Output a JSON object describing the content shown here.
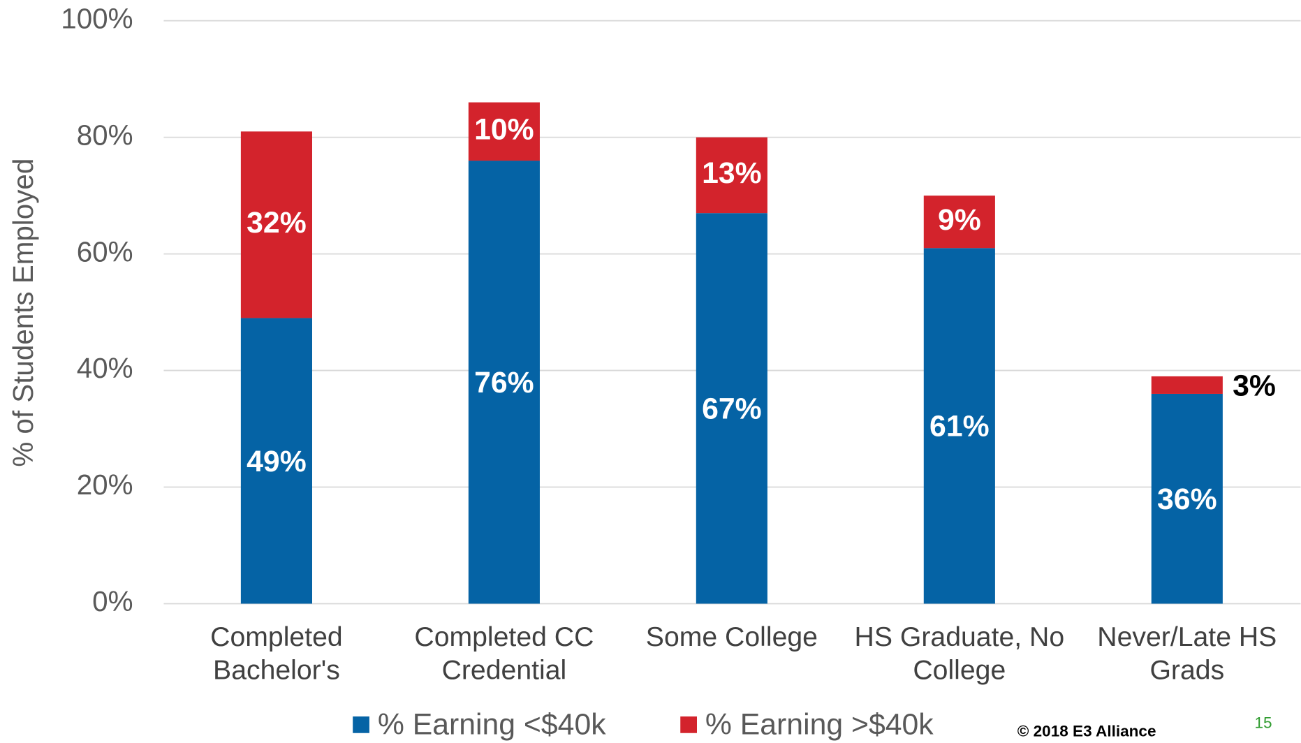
{
  "chart_data": {
    "type": "stacked_bar",
    "y_label": "% of Students Employed",
    "categories": [
      "Completed Bachelor's",
      "Completed CC Credential",
      "Some College",
      "HS Graduate, No College",
      "Never/Late HS Grads"
    ],
    "series": [
      {
        "name": "% Earning <$40k",
        "color": "#0563a5",
        "values": [
          49,
          76,
          67,
          61,
          36
        ],
        "value_labels": [
          "49%",
          "76%",
          "67%",
          "61%",
          "36%"
        ]
      },
      {
        "name": "% Earning >$40k",
        "color": "#d3232c",
        "values": [
          32,
          10,
          13,
          9,
          3
        ],
        "value_labels": [
          "32%",
          "10%",
          "13%",
          "9%",
          "3%"
        ]
      }
    ],
    "ylim": [
      0,
      100
    ],
    "yticks": [
      {
        "value": 0,
        "label": "0%"
      },
      {
        "value": 20,
        "label": "20%"
      },
      {
        "value": 40,
        "label": "40%"
      },
      {
        "value": 60,
        "label": "60%"
      },
      {
        "value": 80,
        "label": "80%"
      },
      {
        "value": 100,
        "label": "100%"
      }
    ],
    "grid": true,
    "legend": "bottom",
    "footer": "© 2018 E3 Alliance",
    "page_number": "15"
  }
}
